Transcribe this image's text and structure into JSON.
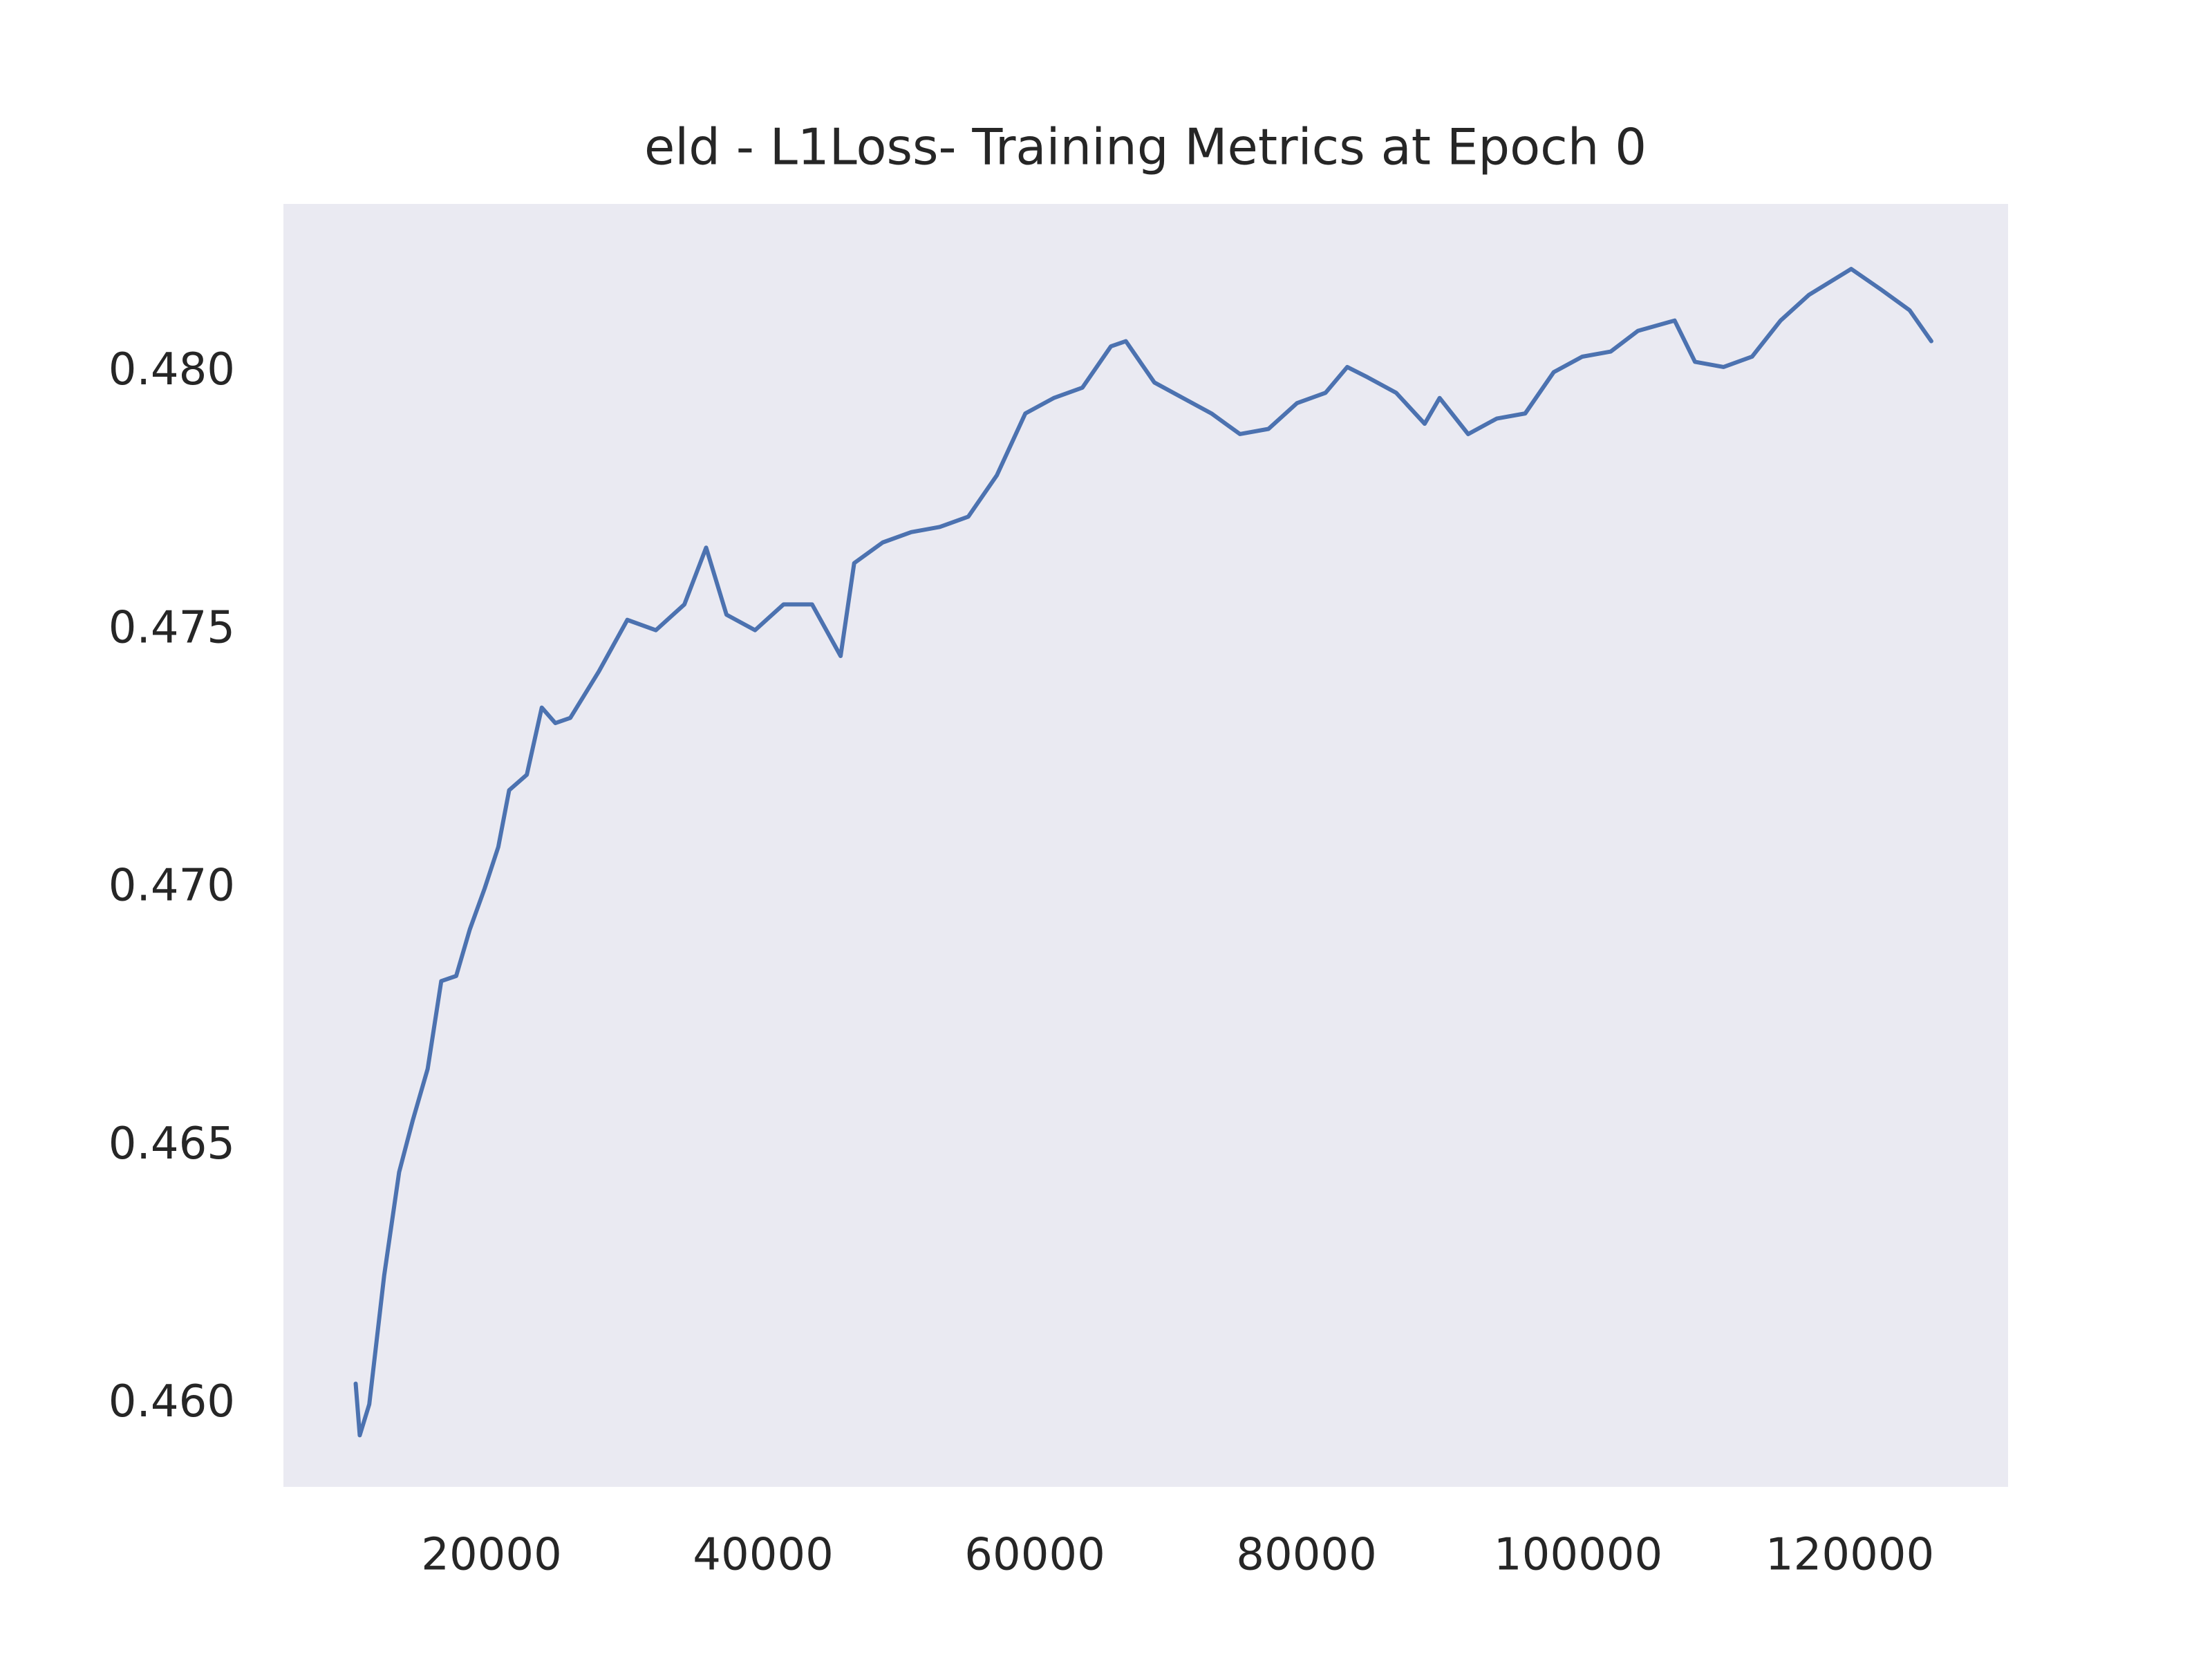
{
  "chart_data": {
    "type": "line",
    "title": "eld - L1Loss- Training Metrics at Epoch 0",
    "x": [
      10000,
      10300,
      11000,
      12100,
      13200,
      14200,
      15300,
      16300,
      17400,
      18400,
      19500,
      20500,
      21300,
      22600,
      23700,
      24700,
      25800,
      27900,
      30000,
      32100,
      34200,
      35800,
      37300,
      39400,
      41500,
      43600,
      45700,
      46700,
      48800,
      50900,
      53000,
      55100,
      57200,
      59300,
      61400,
      63500,
      65600,
      66700,
      68800,
      70900,
      73000,
      75100,
      77200,
      79300,
      81400,
      83000,
      84500,
      86600,
      88700,
      89800,
      91900,
      94000,
      96100,
      98200,
      100300,
      102400,
      104400,
      107100,
      108600,
      110700,
      112800,
      114900,
      117000,
      120100,
      122300,
      124400,
      126000
    ],
    "series": [
      {
        "name": "L1Loss",
        "color": "#4c72b0",
        "values": [
          0.4604,
          0.4594,
          0.46,
          0.4625,
          0.4645,
          0.4655,
          0.4665,
          0.4682,
          0.4683,
          0.4692,
          0.47,
          0.4708,
          0.4719,
          0.4722,
          0.4735,
          0.4732,
          0.4733,
          0.4742,
          0.4752,
          0.475,
          0.4755,
          0.4766,
          0.4753,
          0.475,
          0.4755,
          0.4755,
          0.4745,
          0.4763,
          0.4767,
          0.4769,
          0.477,
          0.4772,
          0.478,
          0.4792,
          0.4795,
          0.4797,
          0.4805,
          0.4806,
          0.4798,
          0.4795,
          0.4792,
          0.4788,
          0.4789,
          0.4794,
          0.4796,
          0.4801,
          0.4799,
          0.4796,
          0.479,
          0.4795,
          0.4788,
          0.4791,
          0.4792,
          0.48,
          0.4803,
          0.4804,
          0.4808,
          0.481,
          0.4802,
          0.4801,
          0.4803,
          0.481,
          0.4815,
          0.482,
          0.4816,
          0.4812,
          0.4806
        ]
      }
    ],
    "xlim": [
      4680,
      131650
    ],
    "xticks": [
      20000,
      40000,
      60000,
      80000,
      100000,
      120000
    ],
    "ylim": [
      0.4584,
      0.48326
    ],
    "yticks": [
      {
        "value": 0.46,
        "label": "0.460"
      },
      {
        "value": 0.465,
        "label": "0.465"
      },
      {
        "value": 0.47,
        "label": "0.470"
      },
      {
        "value": 0.475,
        "label": "0.475"
      },
      {
        "value": 0.48,
        "label": "0.480"
      }
    ],
    "background": "#eaeaf2",
    "grid": false
  }
}
